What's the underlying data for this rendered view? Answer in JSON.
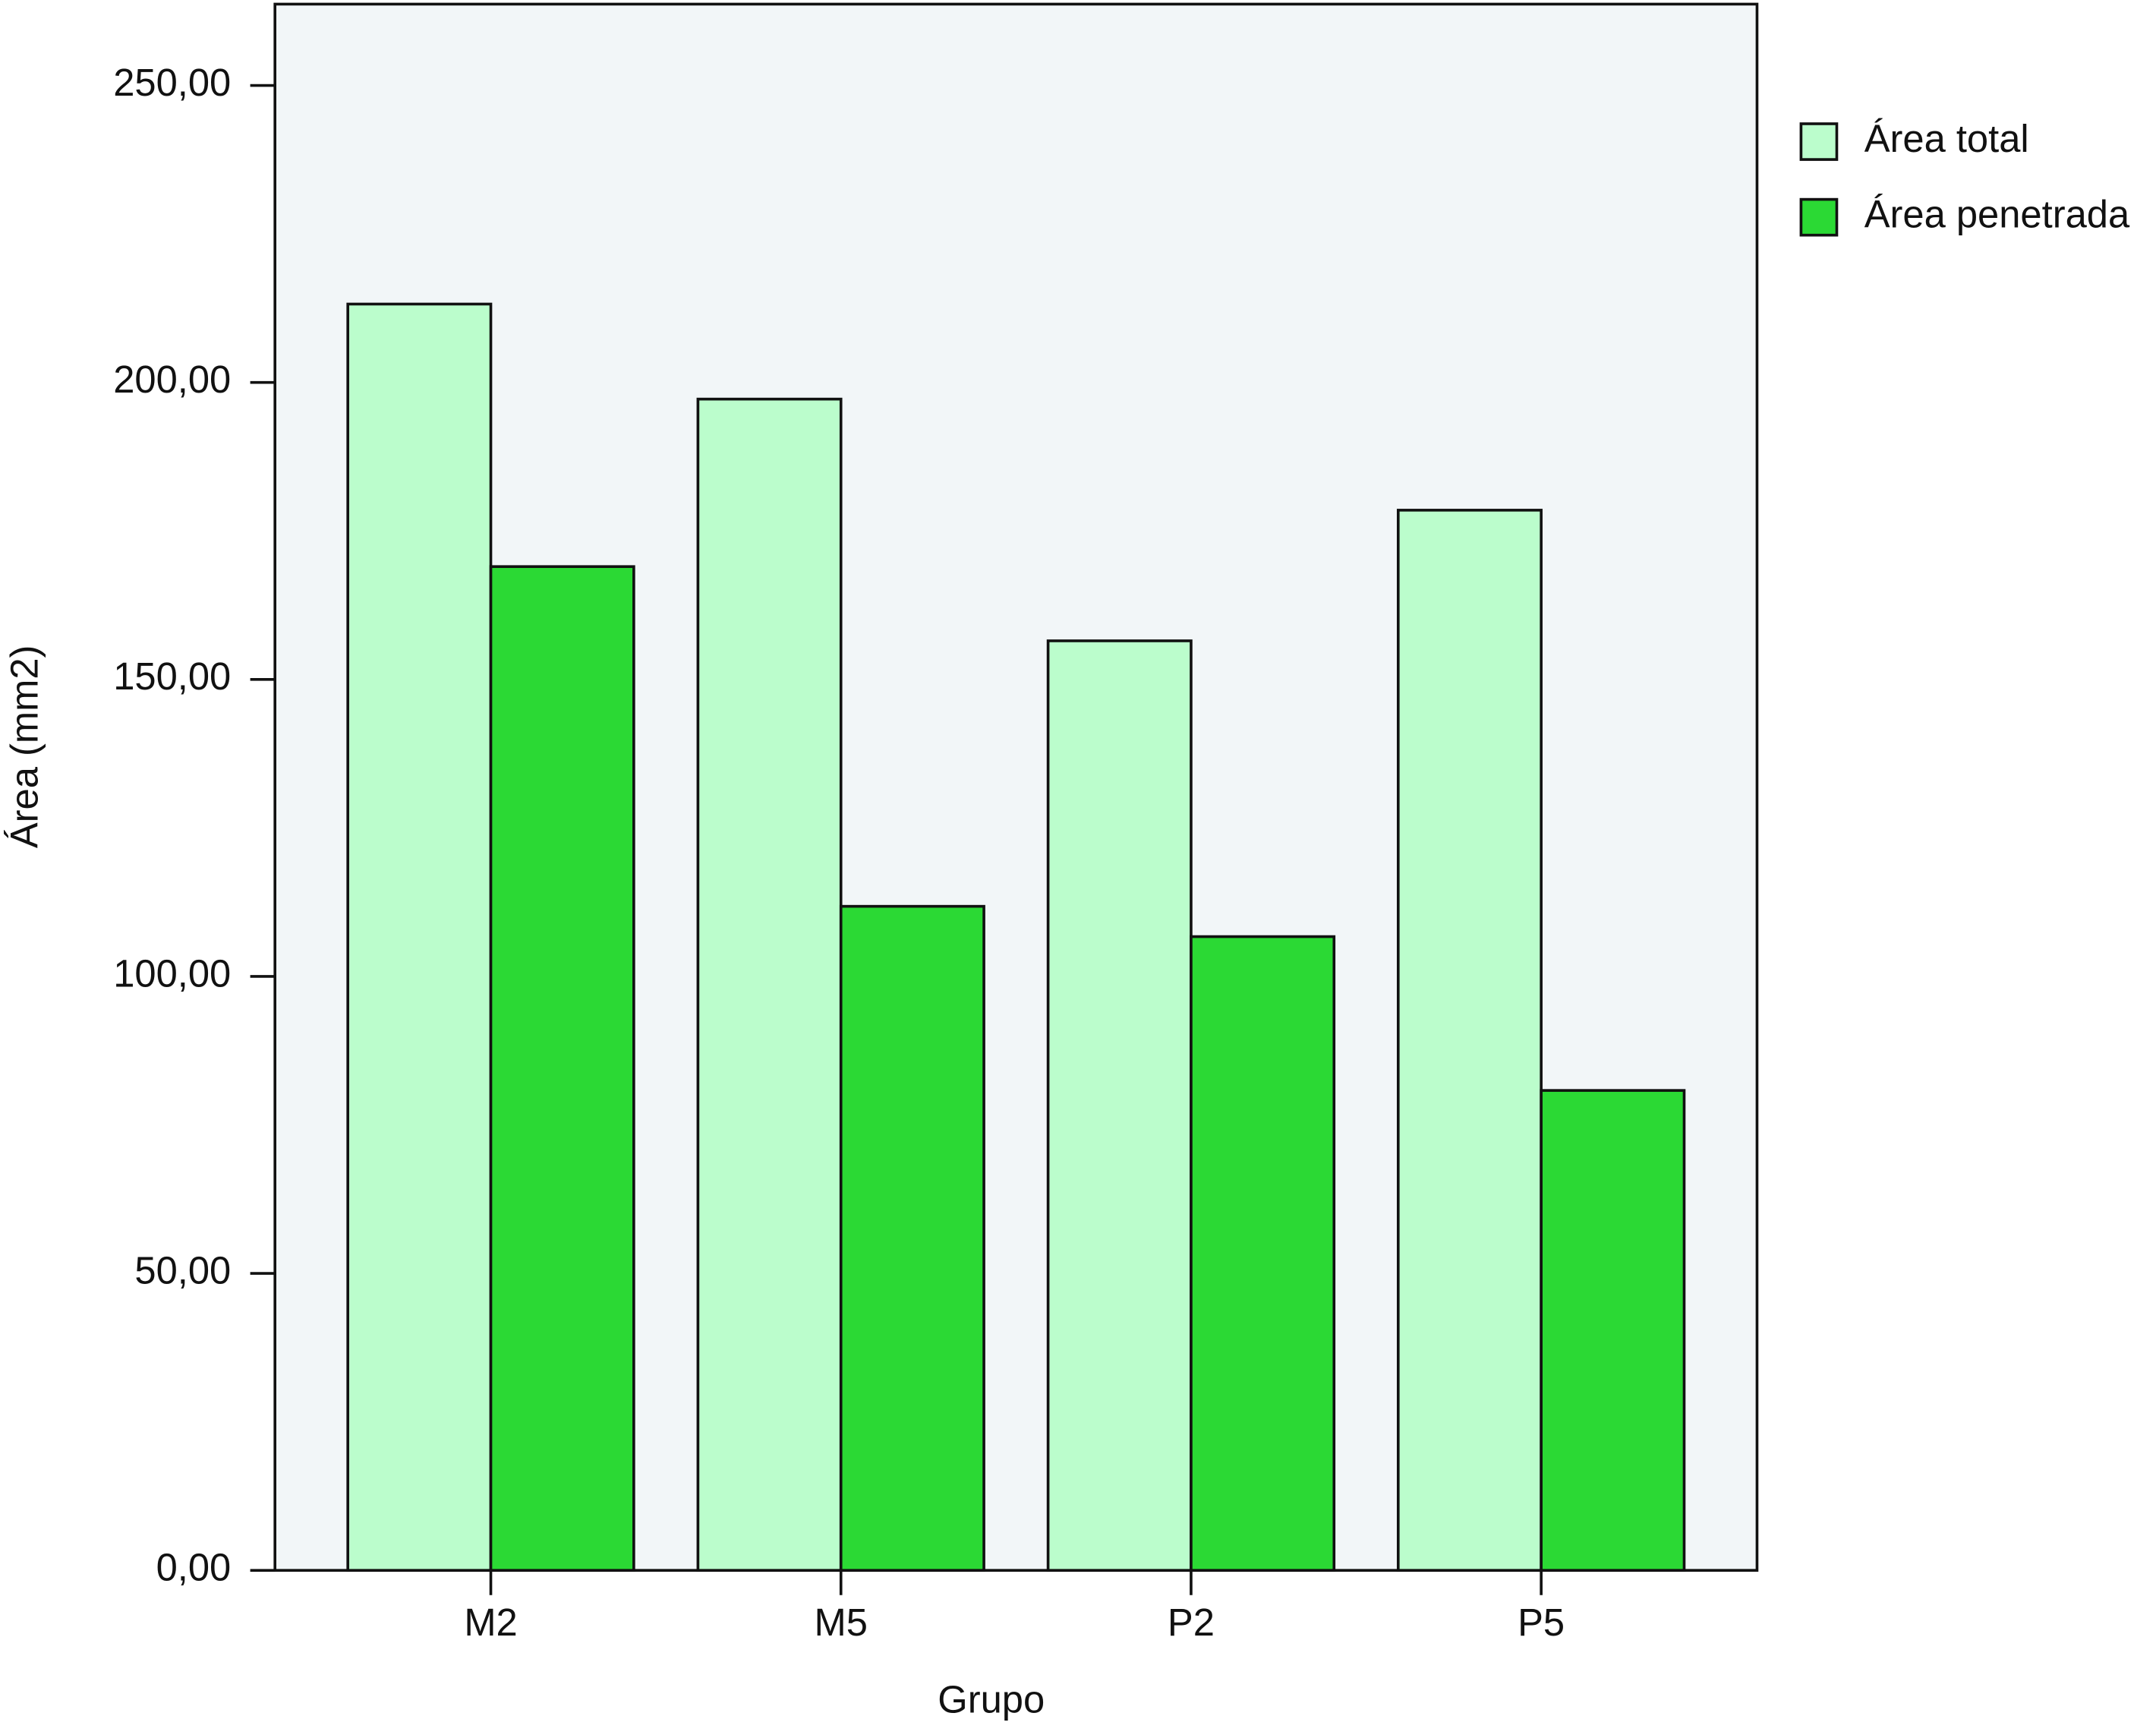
{
  "chart_data": {
    "type": "bar",
    "x_label": "Grupo",
    "y_label": "Área (mm2)",
    "categories": [
      "M2",
      "M5",
      "P2",
      "P5"
    ],
    "series": [
      {
        "name": "Área total",
        "color": "#bbfdcc",
        "values": [
          213.2,
          197.2,
          156.5,
          178.5
        ]
      },
      {
        "name": "Área penetrada",
        "color": "#2bd934",
        "values": [
          169.0,
          111.8,
          106.7,
          80.8
        ]
      }
    ],
    "ylim": [
      0,
      263.7
    ],
    "yticks": [
      {
        "value": 0,
        "label": "0,00"
      },
      {
        "value": 50,
        "label": "50,00"
      },
      {
        "value": 100,
        "label": "100,00"
      },
      {
        "value": 150,
        "label": "150,00"
      },
      {
        "value": 200,
        "label": "200,00"
      },
      {
        "value": 250,
        "label": "250,00"
      }
    ],
    "legend": "right",
    "background": "#f2f6f8"
  }
}
